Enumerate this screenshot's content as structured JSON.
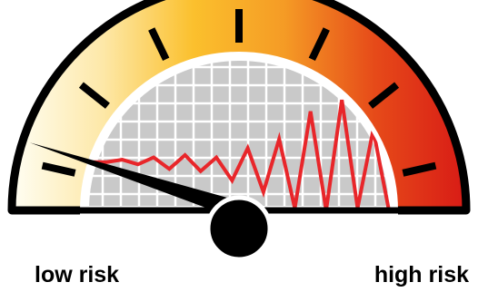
{
  "labels": {
    "low": "low risk",
    "high": "high risk"
  },
  "gauge": {
    "gradient": [
      "#fffef3",
      "#fde8a8",
      "#fbc02d",
      "#f59b25",
      "#e64a19",
      "#d81b16"
    ],
    "face_color": "#c9c9c9",
    "grid_color": "#ffffff",
    "outline_color": "#000000",
    "trace_color": "#e8262a",
    "tick_count": 7,
    "needle_level": 0.1,
    "trace_levels": [
      0.42,
      0.42,
      0.44,
      0.4,
      0.46,
      0.36,
      0.48,
      0.34,
      0.46,
      0.26,
      0.54,
      0.16,
      0.62,
      0.02,
      0.86,
      0.0,
      0.96,
      0.02,
      0.7,
      0.0
    ]
  },
  "icons": {
    "needle": "gauge-needle-icon",
    "pivot": "gauge-pivot-icon"
  }
}
